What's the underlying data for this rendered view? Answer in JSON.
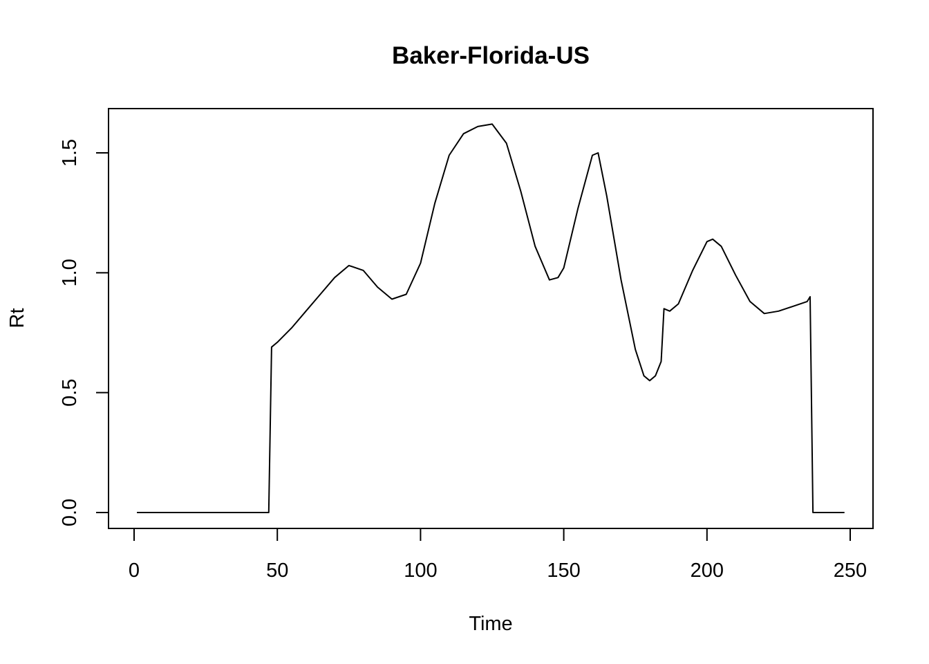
{
  "chart_data": {
    "type": "line",
    "title": "Baker-Florida-US",
    "xlabel": "Time",
    "ylabel": "Rt",
    "xlim": [
      1,
      248
    ],
    "ylim": [
      0,
      1.62
    ],
    "grid": false,
    "x_ticks": [
      0,
      50,
      100,
      150,
      200,
      250
    ],
    "x_tick_labels": [
      "0",
      "50",
      "100",
      "150",
      "200",
      "250"
    ],
    "y_ticks": [
      0,
      0.5,
      1,
      1.5
    ],
    "y_tick_labels": [
      "0.0",
      "0.5",
      "1.0",
      "1.5"
    ],
    "series": [
      {
        "color": "#000000",
        "points": [
          [
            1,
            0
          ],
          [
            47,
            0
          ],
          [
            48,
            0.69
          ],
          [
            50,
            0.71
          ],
          [
            55,
            0.77
          ],
          [
            60,
            0.84
          ],
          [
            65,
            0.91
          ],
          [
            70,
            0.98
          ],
          [
            75,
            1.03
          ],
          [
            80,
            1.01
          ],
          [
            85,
            0.94
          ],
          [
            90,
            0.89
          ],
          [
            95,
            0.91
          ],
          [
            100,
            1.04
          ],
          [
            105,
            1.29
          ],
          [
            110,
            1.49
          ],
          [
            115,
            1.58
          ],
          [
            120,
            1.61
          ],
          [
            125,
            1.62
          ],
          [
            130,
            1.54
          ],
          [
            135,
            1.34
          ],
          [
            140,
            1.11
          ],
          [
            145,
            0.97
          ],
          [
            148,
            0.98
          ],
          [
            150,
            1.02
          ],
          [
            155,
            1.27
          ],
          [
            160,
            1.49
          ],
          [
            162,
            1.5
          ],
          [
            165,
            1.32
          ],
          [
            170,
            0.97
          ],
          [
            175,
            0.68
          ],
          [
            178,
            0.57
          ],
          [
            180,
            0.55
          ],
          [
            182,
            0.57
          ],
          [
            184,
            0.63
          ],
          [
            185,
            0.85
          ],
          [
            187,
            0.84
          ],
          [
            190,
            0.87
          ],
          [
            195,
            1.01
          ],
          [
            200,
            1.13
          ],
          [
            202,
            1.14
          ],
          [
            205,
            1.11
          ],
          [
            210,
            0.99
          ],
          [
            215,
            0.88
          ],
          [
            220,
            0.83
          ],
          [
            225,
            0.84
          ],
          [
            230,
            0.86
          ],
          [
            235,
            0.88
          ],
          [
            236,
            0.9
          ],
          [
            237,
            0
          ],
          [
            248,
            0
          ]
        ]
      }
    ]
  }
}
